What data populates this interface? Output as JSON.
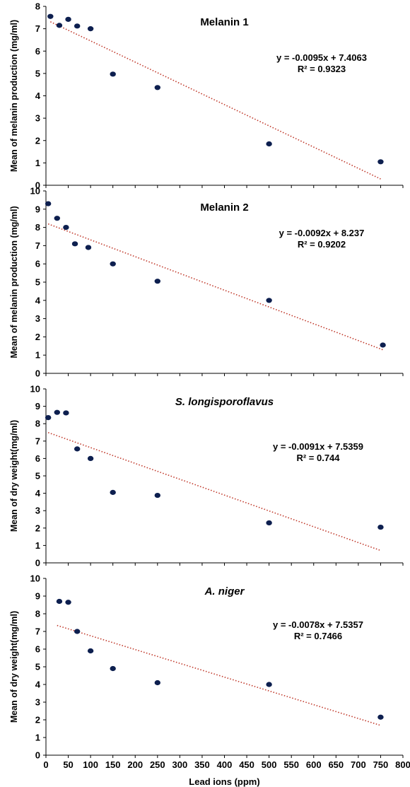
{
  "chart_data": [
    {
      "type": "scatter",
      "title": "Melanin 1",
      "title_italic": false,
      "ylabel": "Mean of melanin production (mg/ml)",
      "ylim": [
        0,
        8
      ],
      "yticks": [
        0,
        1,
        2,
        3,
        4,
        5,
        6,
        7,
        8
      ],
      "xlim": [
        0,
        800
      ],
      "points": [
        {
          "x": 10,
          "y": 7.55
        },
        {
          "x": 30,
          "y": 7.15
        },
        {
          "x": 50,
          "y": 7.42
        },
        {
          "x": 70,
          "y": 7.12
        },
        {
          "x": 100,
          "y": 7.0
        },
        {
          "x": 150,
          "y": 4.97
        },
        {
          "x": 250,
          "y": 4.37
        },
        {
          "x": 500,
          "y": 1.85
        },
        {
          "x": 750,
          "y": 1.05
        }
      ],
      "trendline": {
        "slope": -0.0095,
        "intercept": 7.4063,
        "x_start": 10,
        "x_end": 750
      },
      "equation": "y = -0.0095x + 7.4063",
      "r_squared": "R² = 0.9323",
      "point_color": "#0d1f4f",
      "trend_color": "#c0392b"
    },
    {
      "type": "scatter",
      "title": "Melanin 2",
      "title_italic": false,
      "ylabel": "Mean of melanin production (mg/ml)",
      "ylim": [
        0,
        10
      ],
      "yticks": [
        0,
        1,
        2,
        3,
        4,
        5,
        6,
        7,
        8,
        9,
        10
      ],
      "xlim": [
        0,
        800
      ],
      "points": [
        {
          "x": 5,
          "y": 9.3
        },
        {
          "x": 25,
          "y": 8.5
        },
        {
          "x": 45,
          "y": 8.0
        },
        {
          "x": 65,
          "y": 7.1
        },
        {
          "x": 95,
          "y": 6.9
        },
        {
          "x": 150,
          "y": 6.0
        },
        {
          "x": 250,
          "y": 5.05
        },
        {
          "x": 500,
          "y": 4.0
        },
        {
          "x": 755,
          "y": 1.55
        }
      ],
      "trendline": {
        "slope": -0.0092,
        "intercept": 8.237,
        "x_start": 5,
        "x_end": 755
      },
      "equation": "y = -0.0092x + 8.237",
      "r_squared": "R² = 0.9202",
      "point_color": "#0d1f4f",
      "trend_color": "#c0392b"
    },
    {
      "type": "scatter",
      "title": "S. longisporoflavus",
      "title_italic": true,
      "ylabel": "Mean of dry weight(mg/ml)",
      "ylim": [
        0,
        10
      ],
      "yticks": [
        0,
        1,
        2,
        3,
        4,
        5,
        6,
        7,
        8,
        9,
        10
      ],
      "xlim": [
        0,
        800
      ],
      "points": [
        {
          "x": 5,
          "y": 8.35
        },
        {
          "x": 25,
          "y": 8.65
        },
        {
          "x": 45,
          "y": 8.62
        },
        {
          "x": 70,
          "y": 6.55
        },
        {
          "x": 100,
          "y": 6.0
        },
        {
          "x": 150,
          "y": 4.05
        },
        {
          "x": 250,
          "y": 3.88
        },
        {
          "x": 500,
          "y": 2.3
        },
        {
          "x": 750,
          "y": 2.05
        }
      ],
      "trendline": {
        "slope": -0.0091,
        "intercept": 7.5359,
        "x_start": 5,
        "x_end": 750
      },
      "equation": "y = -0.0091x + 7.5359",
      "r_squared": "R² = 0.744",
      "point_color": "#0d1f4f",
      "trend_color": "#c0392b"
    },
    {
      "type": "scatter",
      "title": "A. niger",
      "title_italic": true,
      "ylabel": "Mean of dry weight(mg/ml)",
      "ylim": [
        0,
        10
      ],
      "yticks": [
        0,
        1,
        2,
        3,
        4,
        5,
        6,
        7,
        8,
        9,
        10
      ],
      "xlim": [
        0,
        800
      ],
      "xticks": [
        0,
        50,
        100,
        150,
        200,
        250,
        300,
        350,
        400,
        450,
        500,
        550,
        600,
        650,
        700,
        750,
        800
      ],
      "xlabel": "Lead ions (ppm)",
      "points": [
        {
          "x": 30,
          "y": 8.7
        },
        {
          "x": 50,
          "y": 8.65
        },
        {
          "x": 70,
          "y": 7.0
        },
        {
          "x": 100,
          "y": 5.9
        },
        {
          "x": 150,
          "y": 4.9
        },
        {
          "x": 250,
          "y": 4.1
        },
        {
          "x": 500,
          "y": 4.0
        },
        {
          "x": 750,
          "y": 2.15
        }
      ],
      "trendline": {
        "slope": -0.0078,
        "intercept": 7.5357,
        "x_start": 25,
        "x_end": 750
      },
      "equation": "y = -0.0078x + 7.5357",
      "r_squared": "R² = 0.7466",
      "point_color": "#0d1f4f",
      "trend_color": "#c0392b"
    }
  ]
}
